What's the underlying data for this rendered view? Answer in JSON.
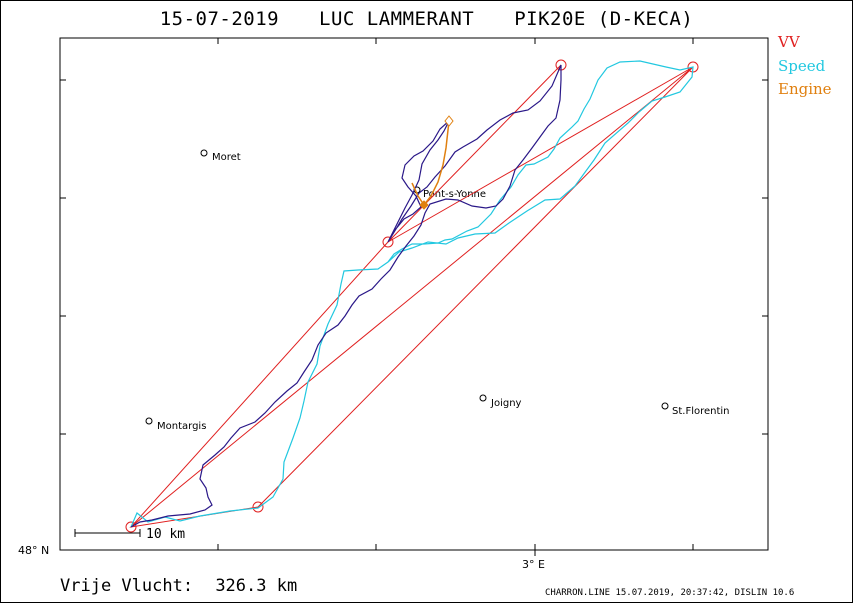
{
  "header": {
    "date": "15-07-2019",
    "pilot": "LUC LAMMERANT",
    "aircraft": "PIK20E (D-KECA)"
  },
  "legend": {
    "items": [
      {
        "label": "VV",
        "color": "#e02020"
      },
      {
        "label": "Speed",
        "color": "#22c8e0"
      },
      {
        "label": "Engine",
        "color": "#e08010"
      }
    ]
  },
  "map": {
    "lat_label": "48° N",
    "lon_label": "3° E",
    "scale_label": "10 km",
    "cities": [
      {
        "name": "Moret"
      },
      {
        "name": "Pont-s-Yonne"
      },
      {
        "name": "Montargis"
      },
      {
        "name": "Joigny"
      },
      {
        "name": "St.Florentin"
      }
    ]
  },
  "footer": {
    "distance_label": "Vrije Vlucht:",
    "distance_value": "326.3 km",
    "info": "CHARRON.LINE 15.07.2019, 20:37:42, DISLIN 10.6"
  },
  "colors": {
    "track": "#2a1888",
    "speed": "#22c8e0",
    "task": "#e02020",
    "engine": "#e08010"
  }
}
